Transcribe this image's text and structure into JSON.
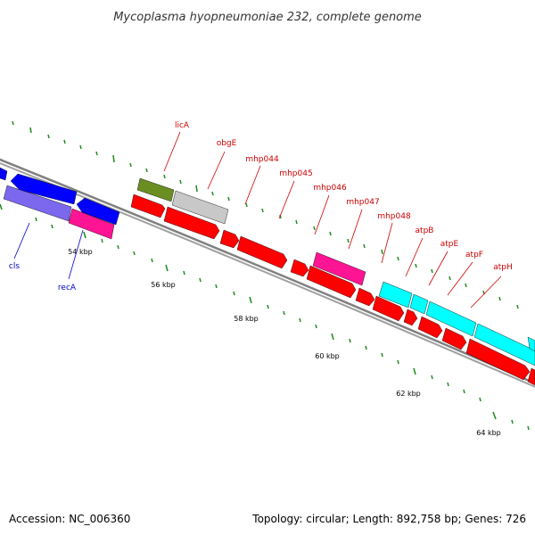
{
  "title": "Mycoplasma hyopneumoniae 232, complete genome",
  "footer": {
    "accession": "Accession: NC_006360",
    "stats": "Topology: circular; Length: 892,758 bp; Genes: 726"
  },
  "colors": {
    "red_genes": "#ff0000",
    "blue_genes": "#0000ff",
    "blue_labels": "#0000cc",
    "red_labels": "#cc0000",
    "magenta": "#ff1493",
    "olive": "#6b8e23",
    "grey": "#c8c8c8",
    "cyan": "#00ffff",
    "slate": "#6a5acd",
    "ticks": "#1a8a1a",
    "backbone": "#808080"
  },
  "tick_labels": [
    "54 kbp",
    "56 kbp",
    "58 kbp",
    "60 kbp",
    "62 kbp",
    "64 kbp"
  ],
  "gene_labels": {
    "cls": "cls",
    "recA": "recA",
    "licA": "licA",
    "obgE": "obgE",
    "mhp044": "mhp044",
    "mhp045": "mhp045",
    "mhp046": "mhp046",
    "mhp047": "mhp047",
    "mhp048": "mhp048",
    "atpB": "atpB",
    "atpE": "atpE",
    "atpF": "atpF",
    "atpH": "atpH"
  }
}
